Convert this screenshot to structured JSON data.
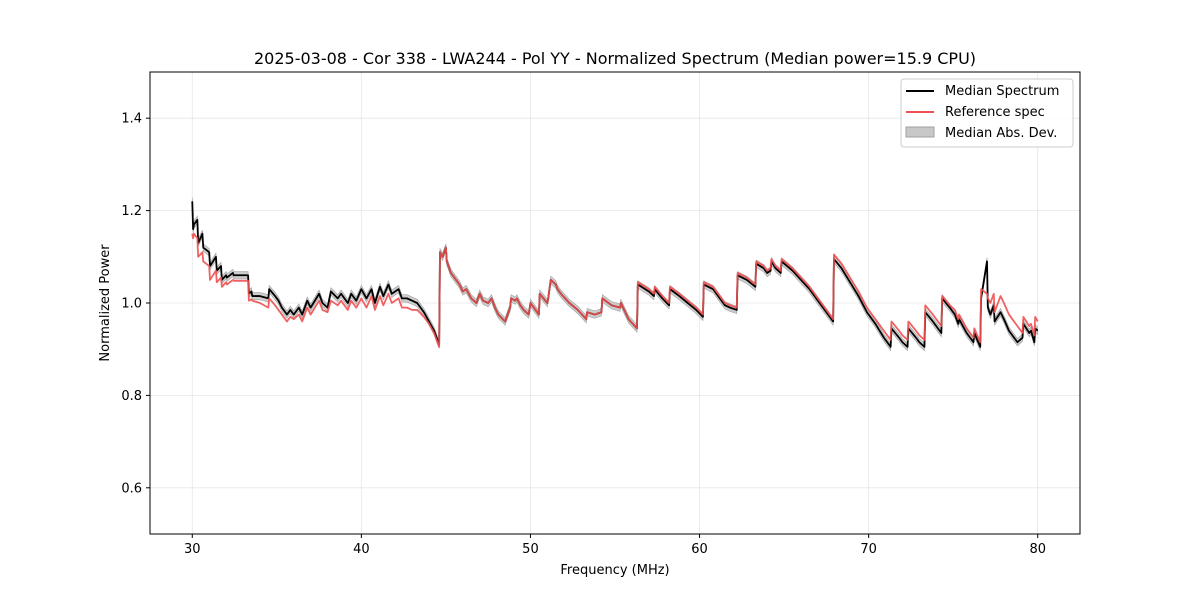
{
  "chart_data": {
    "type": "line",
    "title": "2025-03-08 - Cor 338 - LWA244 - Pol YY - Normalized Spectrum (Median power=15.9 CPU)",
    "xlabel": "Frequency (MHz)",
    "ylabel": "Normalized Power",
    "xlim": [
      27.5,
      82.5
    ],
    "ylim": [
      0.5,
      1.5
    ],
    "xticks": [
      30,
      40,
      50,
      60,
      70,
      80
    ],
    "yticks": [
      0.6,
      0.8,
      1.0,
      1.2,
      1.4
    ],
    "xtick_labels": [
      "30",
      "40",
      "50",
      "60",
      "70",
      "80"
    ],
    "ytick_labels": [
      "0.6",
      "0.8",
      "1.0",
      "1.2",
      "1.4"
    ],
    "grid": true,
    "legend_position": "top-right",
    "legend": [
      "Median Spectrum",
      "Reference spec",
      "Median Abs. Dev."
    ],
    "colors": {
      "median": "#000000",
      "reference": "#f05050",
      "mad_fill": "#c8c8c8",
      "mad_edge": "#a0a0a0"
    },
    "mad_halfwidth": 0.008,
    "series": [
      {
        "name": "Median Spectrum",
        "x": [
          30.0,
          30.05,
          30.1,
          30.3,
          30.35,
          30.6,
          30.65,
          31.0,
          31.05,
          31.4,
          31.45,
          31.7,
          31.75,
          32.0,
          32.05,
          32.4,
          32.45,
          33.3,
          33.35,
          33.5,
          33.55,
          34.0,
          34.5,
          34.55,
          34.9,
          35.1,
          35.3,
          35.6,
          35.8,
          36.0,
          36.3,
          36.5,
          36.8,
          37.0,
          37.5,
          37.7,
          38.0,
          38.2,
          38.6,
          38.8,
          39.2,
          39.4,
          39.7,
          40.0,
          40.3,
          40.6,
          40.8,
          41.1,
          41.3,
          41.6,
          41.8,
          42.2,
          42.4,
          42.7,
          43.0,
          43.3,
          43.7,
          44.0,
          44.3,
          44.6,
          44.65,
          44.8,
          45.0,
          45.05,
          45.3,
          45.5,
          45.8,
          46.0,
          46.2,
          46.5,
          46.8,
          47.0,
          47.2,
          47.5,
          47.7,
          47.9,
          48.1,
          48.5,
          48.8,
          48.85,
          49.1,
          49.2,
          49.4,
          49.6,
          49.9,
          50.0,
          50.5,
          50.55,
          51.0,
          51.05,
          51.2,
          51.5,
          51.6,
          51.8,
          52.3,
          52.8,
          53.3,
          53.35,
          53.8,
          54.2,
          54.25,
          54.8,
          55.3,
          55.35,
          55.8,
          56.3,
          56.35,
          57.0,
          57.3,
          57.35,
          57.8,
          58.2,
          58.25,
          58.8,
          59.3,
          59.8,
          60.2,
          60.25,
          60.8,
          61.0,
          61.3,
          61.5,
          61.8,
          62.2,
          62.25,
          62.8,
          63.3,
          63.35,
          63.8,
          64.0,
          64.2,
          64.25,
          64.5,
          64.8,
          64.85,
          65.5,
          66.0,
          66.5,
          67.0,
          67.5,
          67.9,
          67.95,
          68.4,
          68.9,
          69.4,
          69.9,
          70.4,
          70.9,
          71.3,
          71.35,
          71.8,
          72.0,
          72.3,
          72.35,
          72.8,
          73.0,
          73.3,
          73.35,
          73.8,
          74.3,
          74.35,
          74.8,
          75.1,
          75.3,
          75.35,
          75.8,
          76.2,
          76.25,
          76.6,
          76.65,
          77.0,
          77.05,
          77.2,
          77.4,
          77.45,
          77.8,
          78.0,
          78.3,
          78.8,
          79.1,
          79.15,
          79.5,
          79.6,
          79.8,
          79.85,
          80.0
        ],
        "y": [
          1.22,
          1.16,
          1.17,
          1.18,
          1.13,
          1.15,
          1.12,
          1.11,
          1.08,
          1.1,
          1.07,
          1.08,
          1.05,
          1.06,
          1.055,
          1.065,
          1.06,
          1.06,
          1.02,
          1.025,
          1.015,
          1.015,
          1.01,
          1.03,
          1.015,
          1.005,
          0.99,
          0.975,
          0.985,
          0.975,
          0.99,
          0.975,
          1.005,
          0.99,
          1.02,
          1.0,
          0.99,
          1.025,
          1.01,
          1.02,
          1.0,
          1.02,
          1.005,
          1.03,
          1.01,
          1.03,
          1.0,
          1.035,
          1.015,
          1.04,
          1.02,
          1.03,
          1.01,
          1.01,
          1.005,
          1.0,
          0.98,
          0.96,
          0.94,
          0.91,
          1.11,
          1.1,
          1.12,
          1.09,
          1.065,
          1.055,
          1.04,
          1.025,
          1.03,
          1.01,
          1.0,
          1.02,
          1.005,
          1.0,
          1.01,
          0.99,
          0.975,
          0.96,
          0.99,
          1.01,
          1.005,
          1.01,
          0.995,
          0.985,
          0.975,
          1.0,
          0.975,
          1.02,
          1.0,
          1.01,
          1.05,
          1.04,
          1.03,
          1.02,
          1.0,
          0.985,
          0.965,
          0.98,
          0.975,
          0.98,
          1.01,
          0.995,
          0.99,
          1.0,
          0.965,
          0.945,
          1.04,
          1.025,
          1.015,
          1.03,
          1.01,
          0.995,
          1.03,
          1.015,
          1.0,
          0.985,
          0.97,
          1.04,
          1.03,
          1.02,
          1.005,
          0.995,
          0.99,
          0.985,
          1.06,
          1.05,
          1.035,
          1.085,
          1.075,
          1.065,
          1.07,
          1.09,
          1.075,
          1.065,
          1.09,
          1.07,
          1.05,
          1.03,
          1.005,
          0.98,
          0.96,
          1.095,
          1.075,
          1.045,
          1.015,
          0.98,
          0.955,
          0.925,
          0.905,
          0.945,
          0.925,
          0.915,
          0.905,
          0.945,
          0.925,
          0.915,
          0.905,
          0.98,
          0.96,
          0.935,
          1.01,
          0.99,
          0.975,
          0.955,
          0.965,
          0.935,
          0.915,
          0.935,
          0.905,
          1.01,
          1.09,
          0.99,
          0.975,
          0.995,
          0.96,
          0.98,
          0.965,
          0.94,
          0.915,
          0.925,
          0.955,
          0.935,
          0.94,
          0.915,
          0.945,
          0.94
        ]
      },
      {
        "name": "Reference spec",
        "x": [
          30.0,
          30.05,
          30.1,
          30.3,
          30.35,
          30.6,
          30.65,
          31.0,
          31.05,
          31.4,
          31.45,
          31.7,
          31.75,
          32.0,
          32.05,
          32.4,
          32.45,
          33.3,
          33.35,
          33.5,
          33.55,
          34.0,
          34.5,
          34.55,
          34.9,
          35.1,
          35.3,
          35.6,
          35.8,
          36.0,
          36.3,
          36.5,
          36.8,
          37.0,
          37.5,
          37.7,
          38.0,
          38.2,
          38.6,
          38.8,
          39.2,
          39.4,
          39.7,
          40.0,
          40.3,
          40.6,
          40.8,
          41.1,
          41.3,
          41.6,
          41.8,
          42.2,
          42.4,
          42.7,
          43.0,
          43.3,
          43.7,
          44.0,
          44.3,
          44.6,
          44.65,
          44.8,
          45.0,
          45.05,
          45.3,
          45.5,
          45.8,
          46.0,
          46.2,
          46.5,
          46.8,
          47.0,
          47.2,
          47.5,
          47.7,
          47.9,
          48.1,
          48.5,
          48.8,
          48.85,
          49.1,
          49.2,
          49.4,
          49.6,
          49.9,
          50.0,
          50.5,
          50.55,
          51.0,
          51.05,
          51.2,
          51.5,
          51.6,
          51.8,
          52.3,
          52.8,
          53.3,
          53.35,
          53.8,
          54.2,
          54.25,
          54.8,
          55.3,
          55.35,
          55.8,
          56.3,
          56.35,
          57.0,
          57.3,
          57.35,
          57.8,
          58.2,
          58.25,
          58.8,
          59.3,
          59.8,
          60.2,
          60.25,
          60.8,
          61.0,
          61.3,
          61.5,
          61.8,
          62.2,
          62.25,
          62.8,
          63.3,
          63.35,
          63.8,
          64.0,
          64.2,
          64.25,
          64.5,
          64.8,
          64.85,
          65.5,
          66.0,
          66.5,
          67.0,
          67.5,
          67.9,
          67.95,
          68.4,
          68.9,
          69.4,
          69.9,
          70.4,
          70.9,
          71.3,
          71.35,
          71.8,
          72.0,
          72.3,
          72.35,
          72.8,
          73.0,
          73.3,
          73.35,
          73.8,
          74.3,
          74.35,
          74.8,
          75.1,
          75.3,
          75.35,
          75.8,
          76.2,
          76.25,
          76.6,
          76.65,
          77.0,
          77.05,
          77.2,
          77.4,
          77.45,
          77.8,
          78.0,
          78.3,
          78.8,
          79.1,
          79.15,
          79.5,
          79.6,
          79.8,
          79.85,
          80.0
        ],
        "y": [
          1.15,
          1.14,
          1.15,
          1.14,
          1.1,
          1.11,
          1.09,
          1.08,
          1.05,
          1.07,
          1.045,
          1.055,
          1.035,
          1.045,
          1.04,
          1.05,
          1.048,
          1.048,
          1.005,
          1.008,
          1.005,
          1.0,
          0.99,
          1.01,
          0.995,
          0.985,
          0.975,
          0.96,
          0.97,
          0.965,
          0.975,
          0.96,
          0.99,
          0.975,
          1.005,
          0.985,
          0.98,
          1.005,
          0.995,
          1.005,
          0.985,
          1.005,
          0.99,
          1.01,
          0.99,
          1.015,
          0.985,
          1.015,
          0.995,
          1.02,
          1.0,
          1.01,
          0.99,
          0.99,
          0.985,
          0.985,
          0.97,
          0.955,
          0.935,
          0.905,
          1.11,
          1.1,
          1.12,
          1.09,
          1.065,
          1.055,
          1.04,
          1.025,
          1.03,
          1.01,
          1.0,
          1.02,
          1.005,
          1.0,
          1.01,
          0.99,
          0.975,
          0.96,
          0.99,
          1.01,
          1.005,
          1.01,
          0.995,
          0.985,
          0.975,
          1.0,
          0.975,
          1.02,
          1.0,
          1.01,
          1.05,
          1.04,
          1.03,
          1.02,
          1.0,
          0.985,
          0.965,
          0.98,
          0.975,
          0.98,
          1.01,
          0.995,
          0.99,
          1.0,
          0.965,
          0.945,
          1.045,
          1.03,
          1.02,
          1.035,
          1.015,
          1.0,
          1.035,
          1.02,
          1.005,
          0.99,
          0.975,
          1.045,
          1.035,
          1.025,
          1.01,
          1.0,
          0.995,
          0.99,
          1.065,
          1.055,
          1.04,
          1.09,
          1.08,
          1.07,
          1.075,
          1.095,
          1.08,
          1.07,
          1.095,
          1.075,
          1.055,
          1.035,
          1.01,
          0.985,
          0.965,
          1.105,
          1.085,
          1.055,
          1.025,
          0.99,
          0.965,
          0.94,
          0.92,
          0.96,
          0.94,
          0.93,
          0.92,
          0.96,
          0.94,
          0.93,
          0.92,
          0.995,
          0.975,
          0.95,
          1.015,
          0.995,
          0.985,
          0.965,
          0.975,
          0.945,
          0.925,
          0.945,
          0.915,
          1.03,
          1.02,
          1.01,
          1.0,
          1.02,
          0.98,
          1.015,
          1.0,
          0.975,
          0.95,
          0.935,
          0.97,
          0.95,
          0.955,
          0.93,
          0.97,
          0.96
        ]
      }
    ]
  }
}
